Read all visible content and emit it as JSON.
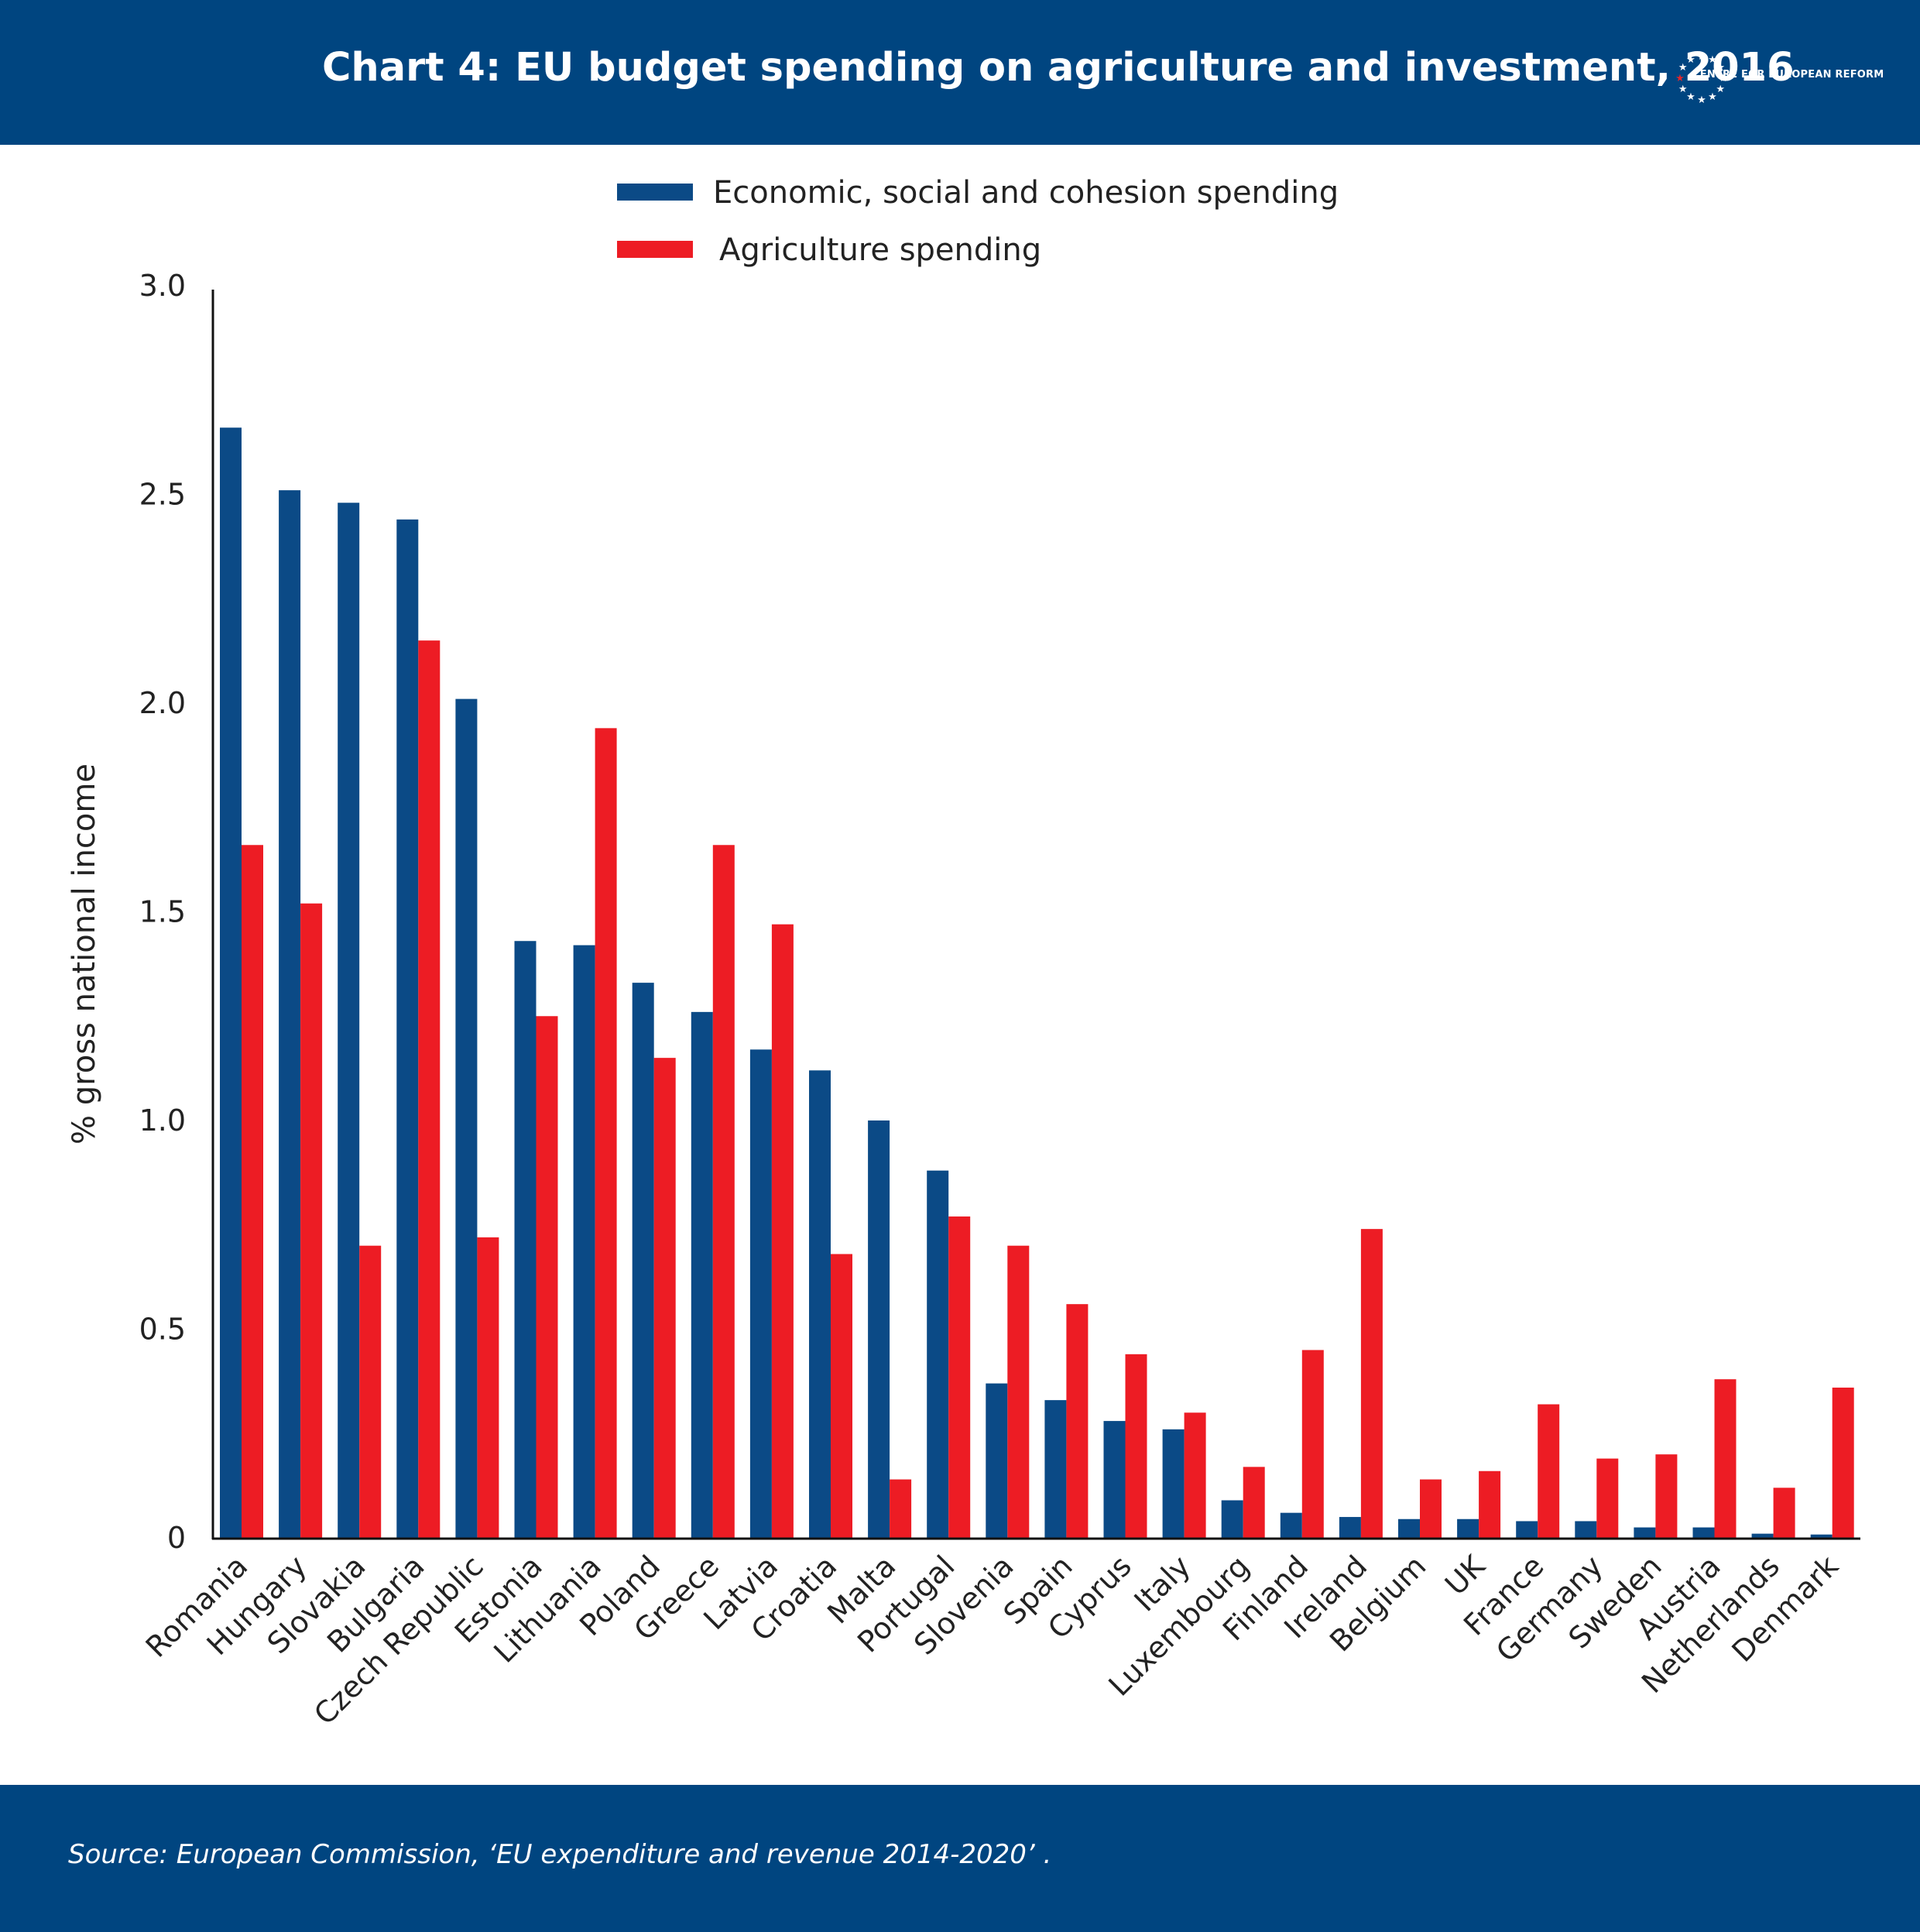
{
  "header": {
    "title": "Chart 4: EU budget spending on agriculture and investment, 2016",
    "logo_text": "CENTRE FOR EUROPEAN REFORM",
    "logo": "cer-stars-logo"
  },
  "footer": {
    "source": "Source: European Commission, ‘EU expenditure and revenue 2014-2020’ ."
  },
  "colors": {
    "brand_blue": "#004580",
    "series_blue": "#0b4a86",
    "series_red": "#ed1c24",
    "logo_star_red": "#e3262b"
  },
  "chart_data": {
    "type": "bar",
    "ylabel": "% gross national income",
    "ylim": [
      0,
      3.0
    ],
    "yticks": [
      "0",
      "0.5",
      "1.0",
      "1.5",
      "2.0",
      "2.5",
      "3.0"
    ],
    "grid": false,
    "legend_position": "top-center",
    "categories": [
      "Romania",
      "Hungary",
      "Slovakia",
      "Bulgaria",
      "Czech Republic",
      "Estonia",
      "Lithuania",
      "Poland",
      "Greece",
      "Latvia",
      "Croatia",
      "Malta",
      "Portugal",
      "Slovenia",
      "Spain",
      "Cyprus",
      "Italy",
      "Luxembourg",
      "Finland",
      "Ireland",
      "Belgium",
      "UK",
      "France",
      "Germany",
      "Sweden",
      "Austria",
      "Netherlands",
      "Denmark"
    ],
    "series": [
      {
        "name": "Economic, social and cohesion spending",
        "color": "#0b4a86",
        "values": [
          2.66,
          2.51,
          2.48,
          2.44,
          2.01,
          1.43,
          1.42,
          1.33,
          1.26,
          1.17,
          1.12,
          1.0,
          0.88,
          0.37,
          0.33,
          0.28,
          0.26,
          0.09,
          0.06,
          0.05,
          0.045,
          0.045,
          0.04,
          0.04,
          0.025,
          0.025,
          0.01,
          0.008
        ]
      },
      {
        "name": "Agriculture spending",
        "color": "#ed1c24",
        "values": [
          1.66,
          1.52,
          0.7,
          2.15,
          0.72,
          1.25,
          1.94,
          1.15,
          1.66,
          1.47,
          0.68,
          0.14,
          0.77,
          0.7,
          0.56,
          0.44,
          0.3,
          0.17,
          0.45,
          0.74,
          0.14,
          0.16,
          0.32,
          0.19,
          0.2,
          0.38,
          0.12,
          0.36
        ]
      }
    ]
  }
}
